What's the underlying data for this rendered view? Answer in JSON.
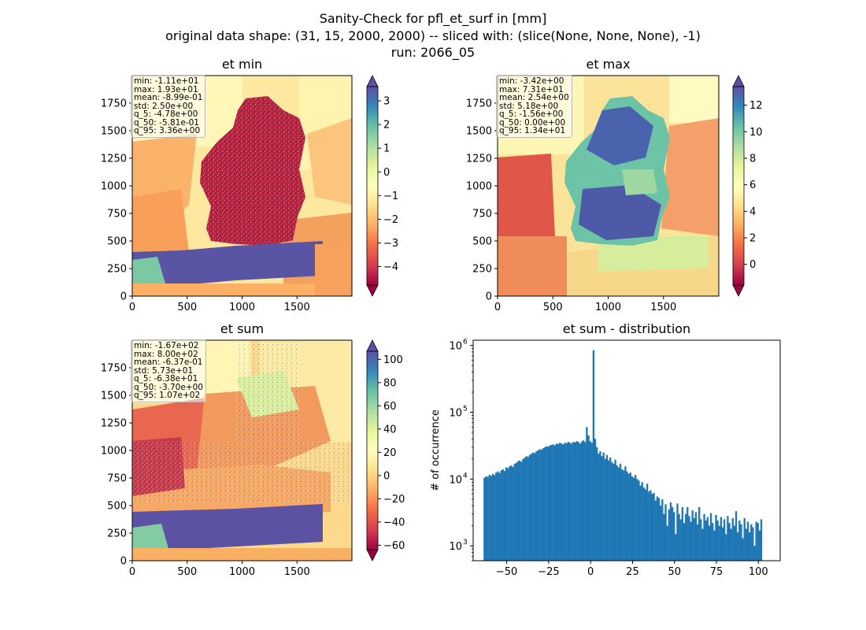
{
  "figure": {
    "title_lines": [
      "Sanity-Check for pfl_et_surf in [mm]",
      "original data shape: (31, 15, 2000, 2000) -- sliced with: (slice(None, None, None), -1)",
      "run: 2066_05"
    ]
  },
  "panels": [
    {
      "title": "et min",
      "xticks": [
        "0",
        "500",
        "1000",
        "1500"
      ],
      "yticks": [
        "0",
        "250",
        "500",
        "750",
        "1000",
        "1250",
        "1500",
        "1750"
      ],
      "colorbar": {
        "ticks": [
          "3",
          "2",
          "1",
          "0",
          "−1",
          "−2",
          "−3",
          "−4"
        ],
        "range": [
          -4.78,
          3.6
        ]
      },
      "stats": [
        "min: -1.11e+01",
        "max: 1.93e+01",
        "mean: -8.99e-01",
        "std: 2.50e+00",
        "q_5: -4.78e+00",
        "q_50: -5.81e-01",
        "q_95: 3.36e+00"
      ]
    },
    {
      "title": "et max",
      "xticks": [
        "0",
        "500",
        "1000",
        "1500"
      ],
      "yticks": [
        "0",
        "250",
        "500",
        "750",
        "1000",
        "1250",
        "1500",
        "1750"
      ],
      "colorbar": {
        "ticks": [
          "12",
          "10",
          "8",
          "6",
          "4",
          "2",
          "0"
        ],
        "range": [
          -1.56,
          13.4
        ]
      },
      "stats": [
        "min: -3.42e+00",
        "max: 7.31e+01",
        "mean: 2.54e+00",
        "std: 5.18e+00",
        "q_5: -1.56e+00",
        "q_50: 0.00e+00",
        "q_95: 1.34e+01"
      ]
    },
    {
      "title": "et sum",
      "xticks": [
        "0",
        "500",
        "1000",
        "1500"
      ],
      "yticks": [
        "0",
        "250",
        "500",
        "750",
        "1000",
        "1250",
        "1500",
        "1750"
      ],
      "colorbar": {
        "ticks": [
          "100",
          "80",
          "60",
          "40",
          "20",
          "0",
          "−20",
          "−40",
          "−60"
        ],
        "range": [
          -63.8,
          107
        ]
      },
      "stats": [
        "min: -1.67e+02",
        "max: 8.00e+02",
        "mean: -6.37e-01",
        "std: 5.73e+01",
        "q_5: -6.38e+01",
        "q_50: -3.70e+00",
        "q_95: 1.07e+02"
      ]
    }
  ],
  "chart_data": {
    "type": "bar",
    "title": "et sum - distribution",
    "xlabel": "",
    "ylabel": "# of occurrence",
    "yscale": "log",
    "ylim": [
      600,
      1200000
    ],
    "xlim": [
      -70,
      113
    ],
    "xticks": [
      "−50",
      "−25",
      "0",
      "25",
      "50",
      "75",
      "100"
    ],
    "yticks": [
      "10",
      "10",
      "10",
      "10"
    ],
    "ytick_exponents": [
      "3",
      "4",
      "5",
      "6"
    ],
    "bar_color": "#1f77b4",
    "bin_start": -63.8,
    "bin_width": 1.0,
    "counts": [
      10500,
      11000,
      10800,
      11600,
      11200,
      12000,
      11500,
      12500,
      13000,
      12400,
      13500,
      14000,
      13200,
      15000,
      14500,
      15500,
      16000,
      15200,
      17000,
      17500,
      18500,
      19000,
      18200,
      20000,
      21000,
      22000,
      21500,
      23000,
      24000,
      25000,
      24500,
      26000,
      27000,
      28000,
      27500,
      29000,
      30000,
      31000,
      30500,
      32000,
      32500,
      33000,
      32000,
      34000,
      33500,
      35000,
      34000,
      33000,
      35000,
      34500,
      36000,
      35000,
      34000,
      36000,
      35500,
      37000,
      36000,
      34000,
      36500,
      38000,
      36000,
      60000,
      45000,
      37000,
      35000,
      850000,
      40000,
      30000,
      24000,
      26000,
      22000,
      25000,
      20000,
      23000,
      19000,
      21000,
      18000,
      17000,
      19500,
      16000,
      15000,
      17000,
      14000,
      13500,
      15500,
      13000,
      12000,
      12500,
      11000,
      10500,
      11500,
      10000,
      9500,
      8000,
      9000,
      7500,
      7000,
      8500,
      6500,
      6800,
      6000,
      6200,
      4800,
      5500,
      5200,
      4000,
      5000,
      3000,
      4200,
      2000,
      3500,
      4500,
      3800,
      3200,
      1500,
      4300,
      3000,
      2500,
      3800,
      2200,
      3000,
      3800,
      2800,
      2300,
      3400,
      2600,
      3200,
      2100,
      3800,
      2500,
      1800,
      3000,
      2400,
      2700,
      2000,
      3100,
      2200,
      1700,
      2900,
      2400,
      2000,
      2700,
      1900,
      2500,
      1500,
      2800,
      2200,
      1800,
      2600,
      2000,
      3300,
      1600,
      2400,
      2100,
      1300,
      2600,
      1800,
      2300,
      1600,
      2100,
      1900,
      1000,
      2300,
      2200,
      1700,
      2500
    ]
  }
}
